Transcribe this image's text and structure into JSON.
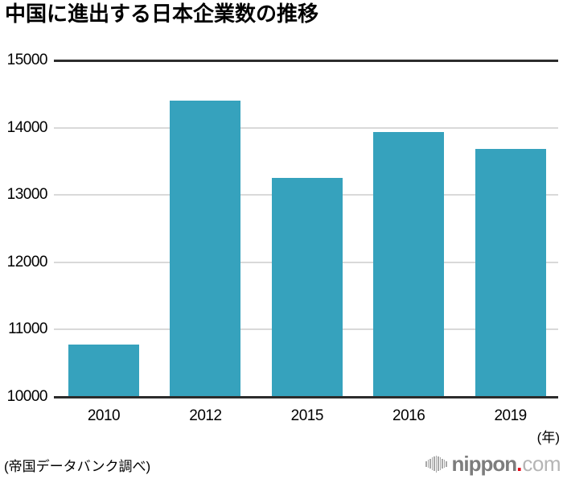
{
  "title": "中国に進出する日本企業数の推移",
  "source_note": "(帝国データバンク調べ)",
  "axis_unit_label": "(年)",
  "logo": {
    "brand": "nippon",
    "dot": ".",
    "tld": "com",
    "icon": "waveform-bars-icon"
  },
  "colors": {
    "bar": "#36a2bd",
    "axis_line": "#2c2c2c",
    "gridline": "#d9d9d9",
    "text": "#000000",
    "logo_brand": "#7d7d7d",
    "logo_tld": "#b5b5b5",
    "logo_dot": "#e60012",
    "logo_icon": "#a8a8a8"
  },
  "chart_data": {
    "type": "bar",
    "categories": [
      "2010",
      "2012",
      "2015",
      "2016",
      "2019"
    ],
    "values": [
      10780,
      14400,
      13250,
      13930,
      13690
    ],
    "title": "中国に進出する日本企業数の推移",
    "xlabel": "(年)",
    "ylabel": "",
    "ylim": [
      10000,
      15000
    ],
    "yticks": [
      10000,
      11000,
      12000,
      13000,
      14000,
      15000
    ],
    "grid": true,
    "legend": false,
    "bar_color": "#36a2bd",
    "source": "(帝国データバンク調べ)"
  }
}
